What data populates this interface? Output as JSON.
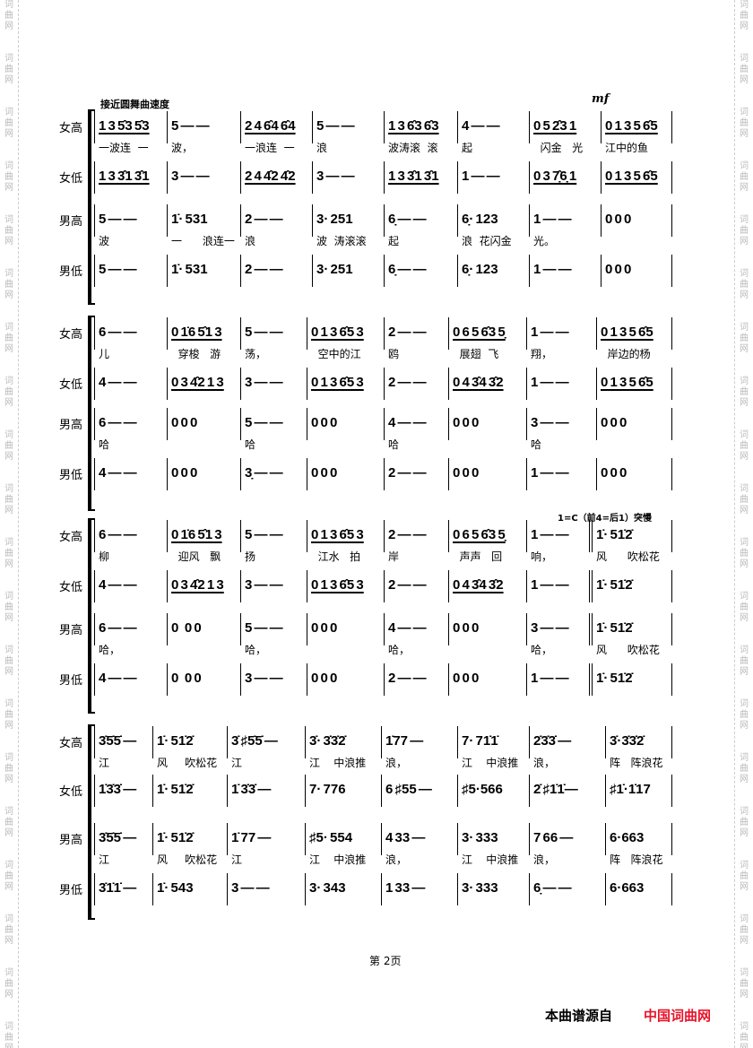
{
  "watermark": "词曲网",
  "tempo": "接近圆舞曲速度",
  "dynamic": "mf",
  "key_change": "1=C（前4=后1）突慢",
  "page_number": "第 2页",
  "footer": {
    "source_label": "本曲谱源自",
    "brand": "中国词曲网",
    "brand_color": "#e8142a"
  },
  "parts": [
    "女高",
    "女低",
    "男高",
    "男低"
  ],
  "systems": [
    {
      "staves": [
        {
          "measures": [
            "1 3 5̂3 5̂3",
            "5 — —",
            "2 4 6̂4 6̂4",
            "5 — —",
            "1 3 6̂3 6̂3",
            "4 — —",
            "0 5 2̂3 1",
            "0 1 3 5 6̂5"
          ],
          "lyrics": [
            "一波连  一",
            "波，",
            "一浪连  一",
            "浪",
            "波涛滚  滚",
            "起",
            "  闪金   光",
            "江中的鱼"
          ]
        },
        {
          "measures": [
            "1 3 3̂1 3̂1",
            "3 — —",
            "2 4 4̂2 4̂2",
            "3 — —",
            "1 3 3̂1 3̂1",
            "1 — —",
            "0 3 7̣̂6̣ 1",
            "0 1 3 5 6̂5"
          ],
          "lyrics": []
        },
        {
          "measures": [
            "5 — —",
            "1̇· 531",
            "2 — —",
            "3· 251",
            "6̣ — —",
            "6̣· 123",
            "1 — —",
            "0 0 0"
          ],
          "lyrics": [
            "波",
            "一      浪连一",
            "浪",
            "波  涛滚滚",
            "起",
            "浪  花闪金",
            "光。",
            ""
          ]
        },
        {
          "measures": [
            "5 — —",
            "1̇· 531",
            "2 — —",
            "3· 251",
            "6̣ — —",
            "6̣· 123",
            "1 — —",
            "0 0 0"
          ],
          "lyrics": []
        }
      ]
    },
    {
      "staves": [
        {
          "measures": [
            "6 — —",
            "0 1̇6 5̂1 3",
            "5 — —",
            "0 1 3 6̂5 3",
            "2 — —",
            "0 6 5 6̂3 5̣",
            "1 — —",
            "0 1 3 5 6̂5"
          ],
          "lyrics": [
            "儿",
            "  穿梭   游",
            "荡，",
            "  空中的江",
            "鸥",
            "  展翅  飞",
            "翔，",
            "  岸边的杨"
          ]
        },
        {
          "measures": [
            "4 — —",
            "0 3 4̂2 1 3",
            "3 — —",
            "0 1 3 6̂5 3",
            "2 — —",
            "0 4 3̂4 3̂2",
            "1 — —",
            "0 1 3 5 6̂5"
          ],
          "lyrics": []
        },
        {
          "measures": [
            "6 — —",
            "0 0 0",
            "5 — —",
            "0 0 0",
            "4 — —",
            "0 0 0",
            "3 — —",
            "0 0 0"
          ],
          "lyrics": [
            "哈",
            "",
            "哈",
            "",
            "哈",
            "",
            "哈",
            ""
          ]
        },
        {
          "measures": [
            "4 — —",
            "0 0 0",
            "3̣ — —",
            "0 0 0",
            "2 — —",
            "0 0 0",
            "1 — —",
            "0 0 0"
          ],
          "lyrics": []
        }
      ]
    },
    {
      "staves": [
        {
          "measures": [
            "6 — —",
            "0 1̇6 5̂1 3",
            "5 — —",
            "0 1 3 6̂5 3",
            "2 — —",
            "0 6 5 6̂3 5̣",
            "1 — —",
            "1̇· 51̇2̇"
          ],
          "lyrics": [
            "柳",
            "  迎风   飘",
            "扬",
            "  江水   拍",
            "岸",
            "  声声   回",
            "响，",
            "风      吹松花"
          ]
        },
        {
          "measures": [
            "4 — —",
            "0 3 4̂2 1 3",
            "3 — —",
            "0 1 3 6̂5 3",
            "2 — —",
            "0 4 3̂4 3̂2",
            "1 — —",
            "1̇· 51̇2̇"
          ],
          "lyrics": []
        },
        {
          "measures": [
            "6 — —",
            "0   0 0",
            "5 — —",
            "0 0 0",
            "4 — —",
            "0 0 0",
            "3 — —",
            "1̇· 51̇2̇"
          ],
          "lyrics": [
            "哈，",
            "",
            "哈，",
            "",
            "哈，",
            "",
            "哈，",
            "风      吹松花"
          ]
        },
        {
          "measures": [
            "4 — —",
            "0   0 0",
            "3 — —",
            "0 0 0",
            "2 — —",
            "0 0 0",
            "1 — —",
            "1̇· 51̇2̇"
          ],
          "lyrics": []
        }
      ]
    },
    {
      "staves": [
        {
          "measures": [
            "3̇5̇5̇ —",
            "1̇· 51̇2̇",
            "3̇ ♯5̇5̇ —",
            "3̇· 3̇3̇2̇",
            "1̇77 —",
            "7· 71̇1̇",
            "2̇3̇3̇ —",
            "3̇·3̇3̇2̇"
          ],
          "lyrics": [
            "江",
            "风     吹松花",
            "江",
            "江    中浪推",
            "浪，",
            "江    中浪推",
            "浪，",
            "阵   阵浪花"
          ]
        },
        {
          "measures": [
            "1̇3̇3̇ —",
            "1̇· 51̇2̇",
            "1̇ 3̇3̇ —",
            "7· 776",
            "6 ♯55 —",
            "♯5·566",
            "2̇ ♯1̇1̇—",
            "♯1̇·1̇17"
          ],
          "lyrics": []
        },
        {
          "measures": [
            "3̇5̇5̇ —",
            "1̇· 51̇2̇",
            "1̇ 77 —",
            "♯5· 554",
            "4 33 —",
            "3· 333",
            "7 66 —",
            "6·663"
          ],
          "lyrics": [
            "江",
            "风     吹松花",
            "江",
            "江    中浪推",
            "浪，",
            "江    中浪推",
            "浪，",
            "阵   阵浪花"
          ]
        },
        {
          "measures": [
            "3̇1̇1̇ —",
            "1̇· 543",
            "3 — —",
            "3· 343",
            "1 33 —",
            "3· 333",
            "6̣ — —",
            "6·663"
          ],
          "lyrics": []
        }
      ]
    }
  ]
}
